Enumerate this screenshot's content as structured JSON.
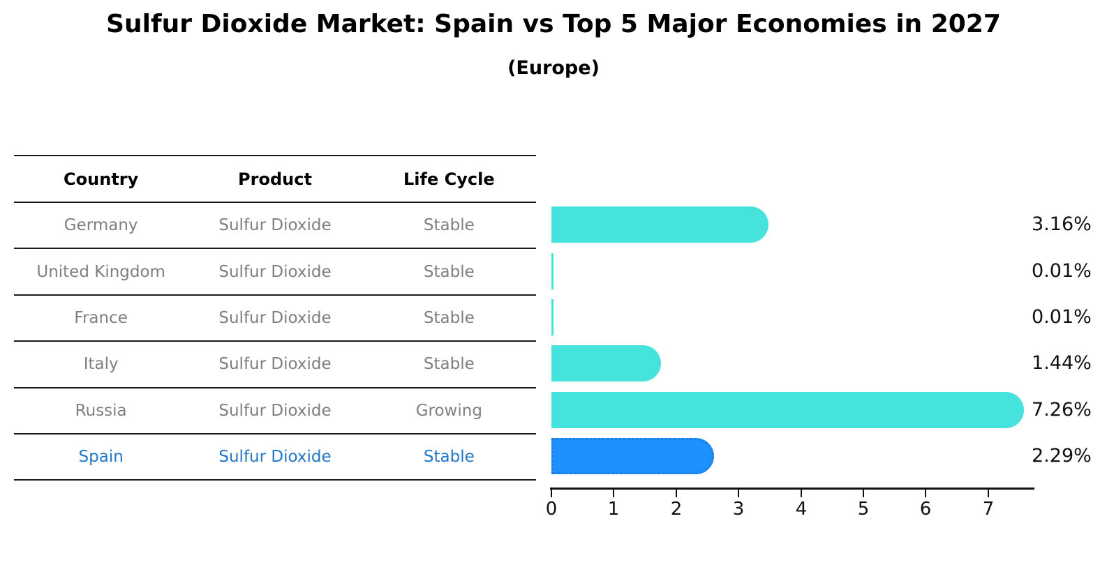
{
  "title": "Sulfur Dioxide Market: Spain vs Top 5 Major Economies in 2027",
  "subtitle": "(Europe)",
  "table": {
    "columns": [
      "Country",
      "Product",
      "Life Cycle"
    ],
    "rows": [
      {
        "country": "Germany",
        "product": "Sulfur Dioxide",
        "life_cycle": "Stable",
        "highlighted": false
      },
      {
        "country": "United Kingdom",
        "product": "Sulfur Dioxide",
        "life_cycle": "Stable",
        "highlighted": false
      },
      {
        "country": "France",
        "product": "Sulfur Dioxide",
        "life_cycle": "Stable",
        "highlighted": false
      },
      {
        "country": "Italy",
        "product": "Sulfur Dioxide",
        "life_cycle": "Stable",
        "highlighted": false
      },
      {
        "country": "Russia",
        "product": "Sulfur Dioxide",
        "life_cycle": "Growing",
        "highlighted": false
      },
      {
        "country": "Spain",
        "product": "Sulfur Dioxide",
        "life_cycle": "Stable",
        "highlighted": true
      }
    ]
  },
  "chart_data": {
    "type": "bar",
    "orientation": "horizontal",
    "title": "Sulfur Dioxide Market: Spain vs Top 5 Major Economies in 2027",
    "subtitle": "(Europe)",
    "categories": [
      "Germany",
      "United Kingdom",
      "France",
      "Italy",
      "Russia",
      "Spain"
    ],
    "values": [
      3.16,
      0.01,
      0.01,
      1.44,
      7.26,
      2.29
    ],
    "value_labels": [
      "3.16%",
      "0.01%",
      "0.01%",
      "1.44%",
      "7.26%",
      "2.29%"
    ],
    "x_ticks": [
      "0",
      "1",
      "2",
      "3",
      "4",
      "5",
      "6",
      "7"
    ],
    "xlim": [
      0,
      7.7
    ],
    "grid": false,
    "legend": "none",
    "highlight_index": 5,
    "colors": {
      "bar": "#45E3DB",
      "highlight_bar": "#1E90FF",
      "highlight_border": "#1B7FE0",
      "value_label": "#111111",
      "row_text": "#7f7f7f",
      "highlight_text": "#2277C8",
      "header_text": "#000000",
      "line": "#1a1a1a"
    }
  }
}
